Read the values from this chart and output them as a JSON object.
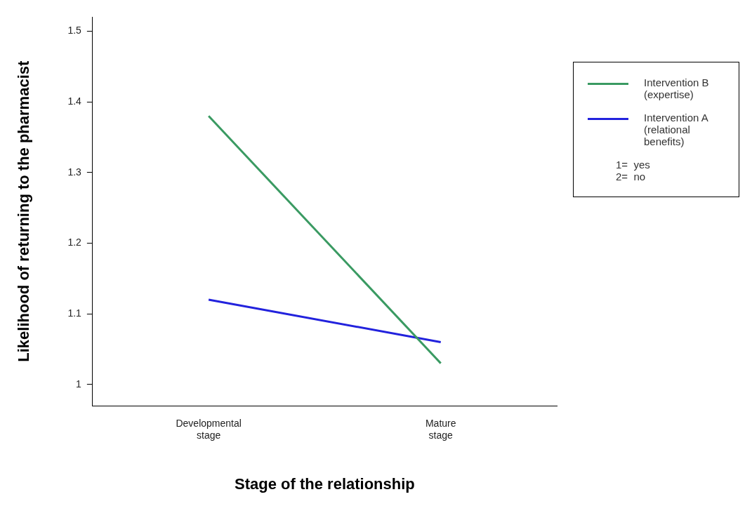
{
  "chart_data": {
    "type": "line",
    "xlabel": "Stage of the relationship",
    "ylabel": "Likelihood of returning to the pharmacist",
    "categories": [
      "Developmental stage",
      "Mature stage"
    ],
    "series": [
      {
        "name": "Intervention B (expertise)",
        "color": "#3a9a62",
        "values": [
          1.38,
          1.03
        ]
      },
      {
        "name": "Intervention A (relational benefits)",
        "color": "#2222dd",
        "values": [
          1.12,
          1.06
        ]
      }
    ],
    "ylim": [
      0.97,
      1.52
    ],
    "yticks": [
      1,
      1.1,
      1.2,
      1.3,
      1.4,
      1.5
    ],
    "grid": false,
    "legend": "right",
    "marker": "none",
    "line_style": "solid",
    "annotations": [
      "1=  yes",
      "2=  no"
    ]
  }
}
